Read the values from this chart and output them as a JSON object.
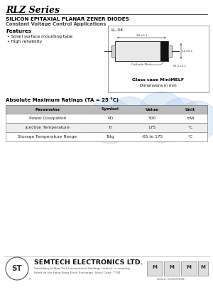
{
  "title": "RLZ Series",
  "subtitle1": "SILICON EPITAXIAL PLANAR ZENER DIODES",
  "subtitle2": "Constant Voltage Control Applications",
  "features_title": "Features",
  "features": [
    "Small surface mounting type",
    "High reliability"
  ],
  "package_label": "LL-34",
  "pkg_dim_top": "3.6±0.1",
  "pkg_dim_right": "1.4±0.1",
  "pkg_cathode": "Cathode Mark",
  "pkg_dim_bot": "R1.2±0.1",
  "package_note1": "Glass case MiniMELF",
  "package_note2": "Dimensions in mm",
  "table_title": "Absolute Maximum Ratings (TA = 25 °C)",
  "table_headers": [
    "Parameter",
    "Symbol",
    "Value",
    "Unit"
  ],
  "table_rows": [
    [
      "Power Dissipation",
      "PD",
      "500",
      "mW"
    ],
    [
      "Junction Temperature",
      "Tj",
      "175",
      "°C"
    ],
    [
      "Storage Temperature Range",
      "Tstg",
      "-65 to 175",
      "°C"
    ]
  ],
  "company_name": "SEMTECH ELECTRONICS LTD.",
  "company_sub1": "Subsidiary of New York International Holdings Limited, a company",
  "company_sub2": "listed on the Hong Kong Stock Exchange. Stock Code: 7743",
  "date_text": "Dated: 01/05/2008",
  "bg_color": "#ffffff",
  "text_color": "#000000",
  "table_hdr_bg": "#bbbbbb",
  "table_alt_bg": "#eeeeee",
  "wm_blue": "#aaccee",
  "wm_orange": "#ddaa66",
  "wm_alpha": 0.35
}
